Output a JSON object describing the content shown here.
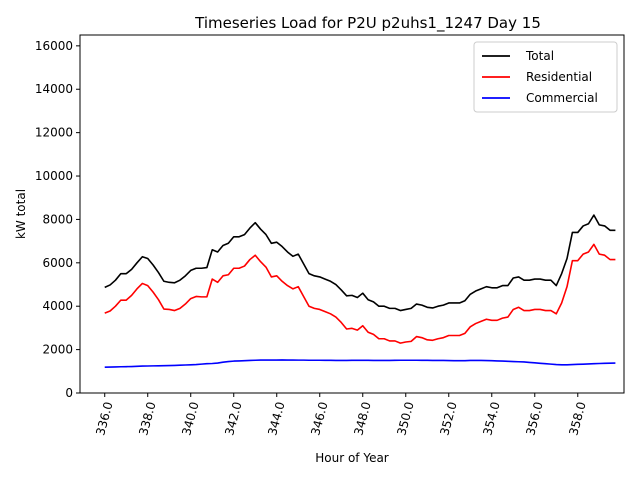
{
  "chart_data": {
    "type": "line",
    "title": "Timeseries Load for P2U p2uhs1_1247  Day 15",
    "xlabel": "Hour of Year",
    "ylabel": "kW total",
    "xlim": [
      334.85,
      360.15
    ],
    "ylim": [
      0,
      16500
    ],
    "x_ticks": [
      336,
      338,
      340,
      342,
      344,
      346,
      348,
      350,
      352,
      354,
      356,
      358
    ],
    "x_tick_labels": [
      "336.0",
      "338.0",
      "340.0",
      "342.0",
      "344.0",
      "346.0",
      "348.0",
      "350.0",
      "352.0",
      "354.0",
      "356.0",
      "358.0"
    ],
    "y_ticks": [
      0,
      2000,
      4000,
      6000,
      8000,
      10000,
      12000,
      14000,
      16000
    ],
    "y_tick_labels": [
      "0",
      "2000",
      "4000",
      "6000",
      "8000",
      "10000",
      "12000",
      "14000",
      "16000"
    ],
    "x_start": 336.0,
    "x_step": 0.25,
    "legend_position": "top-right",
    "grid": false,
    "series": [
      {
        "name": "Total",
        "color": "#000000",
        "values": [
          4870,
          4980,
          5200,
          5500,
          5500,
          5700,
          6000,
          6280,
          6200,
          5900,
          5550,
          5150,
          5100,
          5080,
          5200,
          5400,
          5650,
          5750,
          5750,
          5780,
          6600,
          6500,
          6800,
          6900,
          7200,
          7200,
          7300,
          7600,
          7850,
          7550,
          7300,
          6900,
          6950,
          6750,
          6500,
          6300,
          6400,
          5950,
          5500,
          5400,
          5350,
          5250,
          5150,
          5000,
          4750,
          4480,
          4500,
          4400,
          4600,
          4300,
          4200,
          4000,
          4000,
          3900,
          3900,
          3800,
          3850,
          3900,
          4100,
          4050,
          3950,
          3920,
          4000,
          4050,
          4150,
          4150,
          4150,
          4250,
          4550,
          4700,
          4800,
          4900,
          4850,
          4850,
          4950,
          4950,
          5300,
          5350,
          5200,
          5200,
          5250,
          5250,
          5200,
          5200,
          4950,
          5500,
          6200,
          7400,
          7400,
          7700,
          7800,
          8200,
          7750,
          7700,
          7500,
          7500
        ]
      },
      {
        "name": "Residential",
        "color": "#ff0000",
        "values": [
          3680,
          3780,
          4000,
          4280,
          4280,
          4500,
          4800,
          5050,
          4950,
          4650,
          4300,
          3870,
          3850,
          3800,
          3900,
          4100,
          4350,
          4450,
          4430,
          4430,
          5250,
          5100,
          5400,
          5450,
          5750,
          5750,
          5850,
          6150,
          6350,
          6050,
          5800,
          5350,
          5400,
          5150,
          4950,
          4800,
          4900,
          4450,
          4000,
          3900,
          3850,
          3750,
          3650,
          3500,
          3250,
          2950,
          2980,
          2900,
          3100,
          2800,
          2700,
          2500,
          2500,
          2400,
          2400,
          2300,
          2350,
          2380,
          2600,
          2550,
          2450,
          2430,
          2500,
          2550,
          2650,
          2650,
          2650,
          2750,
          3050,
          3200,
          3300,
          3400,
          3350,
          3350,
          3450,
          3500,
          3850,
          3950,
          3800,
          3800,
          3850,
          3850,
          3800,
          3800,
          3650,
          4150,
          4900,
          6100,
          6100,
          6400,
          6500,
          6850,
          6400,
          6350,
          6150,
          6150
        ]
      },
      {
        "name": "Commercial",
        "color": "#0000ff",
        "values": [
          1190,
          1195,
          1200,
          1210,
          1215,
          1220,
          1230,
          1240,
          1245,
          1250,
          1255,
          1260,
          1265,
          1270,
          1280,
          1290,
          1300,
          1310,
          1330,
          1350,
          1360,
          1380,
          1420,
          1450,
          1470,
          1480,
          1490,
          1500,
          1510,
          1520,
          1520,
          1520,
          1520,
          1525,
          1520,
          1520,
          1515,
          1515,
          1510,
          1510,
          1510,
          1505,
          1505,
          1500,
          1500,
          1500,
          1505,
          1505,
          1505,
          1505,
          1500,
          1500,
          1500,
          1500,
          1505,
          1510,
          1510,
          1510,
          1510,
          1505,
          1505,
          1500,
          1500,
          1500,
          1495,
          1490,
          1490,
          1490,
          1500,
          1500,
          1500,
          1495,
          1490,
          1480,
          1470,
          1460,
          1450,
          1440,
          1430,
          1410,
          1390,
          1370,
          1350,
          1330,
          1310,
          1300,
          1300,
          1310,
          1320,
          1330,
          1340,
          1350,
          1360,
          1370,
          1375,
          1380
        ]
      }
    ]
  }
}
